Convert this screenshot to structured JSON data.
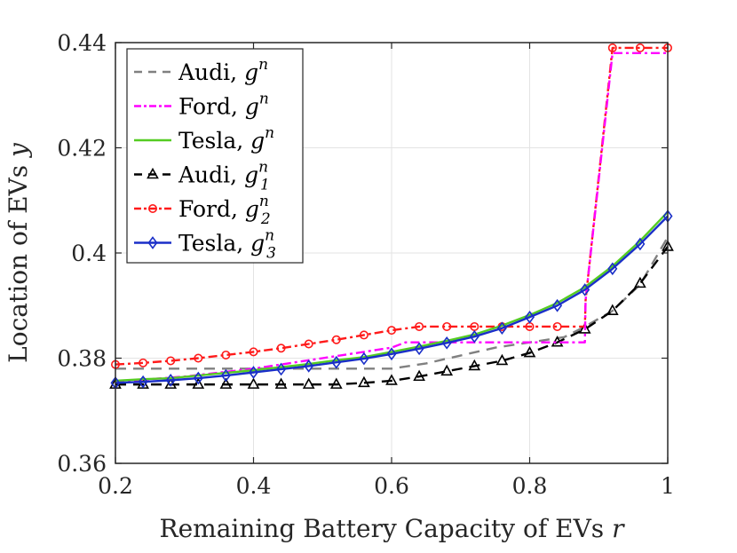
{
  "chart_data": {
    "type": "line",
    "xlabel_text": "Remaining Battery Capacity of EVs ",
    "xlabel_var": "r",
    "ylabel_text": "Location of EVs ",
    "ylabel_var": "y",
    "xlim": [
      0.2,
      1.0
    ],
    "ylim": [
      0.36,
      0.44
    ],
    "xticks": [
      0.2,
      0.4,
      0.6,
      0.8,
      1.0
    ],
    "xtick_labels": [
      "0.2",
      "0.4",
      "0.6",
      "0.8",
      "1"
    ],
    "yticks": [
      0.36,
      0.38,
      0.4,
      0.42,
      0.44
    ],
    "ytick_labels": [
      "0.36",
      "0.38",
      "0.4",
      "0.42",
      "0.44"
    ],
    "grid": true,
    "legend_position": "top-left",
    "series": [
      {
        "name": "Audi, g^n",
        "label": "Audi,",
        "sym": "g",
        "sup": "n",
        "sub": "",
        "color": "#808080",
        "dash": "12,8",
        "marker": "none",
        "x": [
          0.2,
          0.3,
          0.4,
          0.5,
          0.6,
          0.65,
          0.7,
          0.75,
          0.8,
          0.85,
          0.88,
          0.92,
          0.96,
          1.0
        ],
        "y": [
          0.378,
          0.378,
          0.378,
          0.378,
          0.378,
          0.379,
          0.3805,
          0.382,
          0.383,
          0.384,
          0.386,
          0.389,
          0.394,
          0.403
        ]
      },
      {
        "name": "Ford, g^n",
        "label": "Ford,",
        "sym": "g",
        "sup": "n",
        "sub": "",
        "color": "#ff00ff",
        "dash": "10,4,3,4",
        "marker": "none",
        "x": [
          0.2,
          0.3,
          0.4,
          0.5,
          0.6,
          0.62,
          0.7,
          0.72,
          0.8,
          0.88,
          0.881,
          0.92,
          1.0
        ],
        "y": [
          0.3755,
          0.3765,
          0.378,
          0.38,
          0.382,
          0.383,
          0.383,
          0.383,
          0.383,
          0.383,
          0.391,
          0.438,
          0.438
        ]
      },
      {
        "name": "Tesla, g^n",
        "label": "Tesla,",
        "sym": "g",
        "sup": "n",
        "sub": "",
        "color": "#55cc22",
        "dash": "",
        "marker": "none",
        "x": [
          0.2,
          0.24,
          0.28,
          0.32,
          0.36,
          0.4,
          0.44,
          0.48,
          0.52,
          0.56,
          0.6,
          0.64,
          0.68,
          0.72,
          0.76,
          0.8,
          0.84,
          0.88,
          0.92,
          0.96,
          1.0
        ],
        "y": [
          0.3757,
          0.376,
          0.3762,
          0.3767,
          0.3772,
          0.3777,
          0.3783,
          0.3789,
          0.3796,
          0.3802,
          0.3812,
          0.3822,
          0.3833,
          0.3845,
          0.3862,
          0.3882,
          0.3905,
          0.3935,
          0.3975,
          0.4023,
          0.4078
        ]
      },
      {
        "name": "Audi, g_1^n",
        "label": "Audi,",
        "sym": "g",
        "sup": "n",
        "sub": "1",
        "color": "#000000",
        "dash": "12,8",
        "marker": "triangle",
        "x": [
          0.2,
          0.24,
          0.28,
          0.32,
          0.36,
          0.4,
          0.44,
          0.48,
          0.52,
          0.56,
          0.6,
          0.64,
          0.68,
          0.72,
          0.76,
          0.8,
          0.84,
          0.88,
          0.92,
          0.96,
          1.0
        ],
        "y": [
          0.375,
          0.375,
          0.375,
          0.375,
          0.375,
          0.375,
          0.375,
          0.375,
          0.375,
          0.3753,
          0.3757,
          0.3765,
          0.3775,
          0.3785,
          0.3795,
          0.381,
          0.383,
          0.3855,
          0.389,
          0.3942,
          0.4012
        ]
      },
      {
        "name": "Ford, g_2^n",
        "label": "Ford,",
        "sym": "g",
        "sup": "n",
        "sub": "2",
        "color": "#ff1a1a",
        "dash": "10,4,3,4",
        "marker": "circle",
        "x": [
          0.2,
          0.24,
          0.28,
          0.32,
          0.36,
          0.4,
          0.44,
          0.48,
          0.52,
          0.56,
          0.6,
          0.64,
          0.68,
          0.72,
          0.76,
          0.8,
          0.84,
          0.88,
          0.881,
          0.92,
          0.96,
          1.0
        ],
        "y": [
          0.3788,
          0.3791,
          0.3795,
          0.38,
          0.3806,
          0.3812,
          0.3819,
          0.3827,
          0.3835,
          0.3844,
          0.3853,
          0.386,
          0.386,
          0.386,
          0.386,
          0.386,
          0.386,
          0.386,
          0.391,
          0.439,
          0.439,
          0.439
        ],
        "marker_idx": [
          0,
          1,
          2,
          3,
          4,
          5,
          6,
          7,
          8,
          9,
          10,
          11,
          12,
          13,
          14,
          15,
          16,
          19,
          20,
          21
        ]
      },
      {
        "name": "Tesla, g_3^n",
        "label": "Tesla,",
        "sym": "g",
        "sup": "n",
        "sub": "3",
        "color": "#1a2fc8",
        "dash": "",
        "marker": "diamond",
        "x": [
          0.2,
          0.24,
          0.28,
          0.32,
          0.36,
          0.4,
          0.44,
          0.48,
          0.52,
          0.56,
          0.6,
          0.64,
          0.68,
          0.72,
          0.76,
          0.8,
          0.84,
          0.88,
          0.92,
          0.96,
          1.0
        ],
        "y": [
          0.3753,
          0.3755,
          0.3758,
          0.3762,
          0.3767,
          0.3773,
          0.3779,
          0.3785,
          0.3792,
          0.3799,
          0.3808,
          0.3818,
          0.3829,
          0.3841,
          0.3857,
          0.3878,
          0.39,
          0.393,
          0.397,
          0.4017,
          0.407
        ]
      }
    ]
  }
}
